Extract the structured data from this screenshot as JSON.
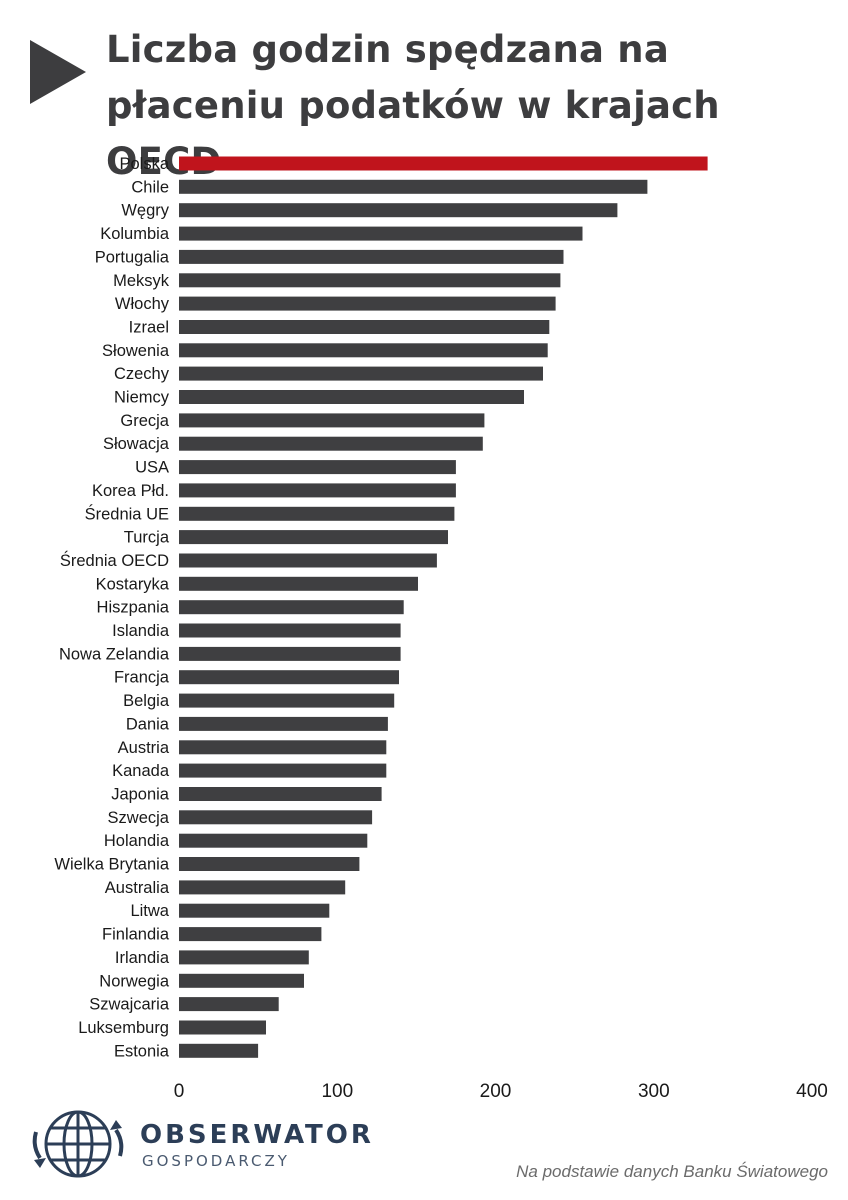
{
  "title": "Liczba godzin spędzana na płaceniu podatków w krajach OECD",
  "source": "Na podstawie danych Banku Światowego",
  "logo": {
    "name": "OBSERWATOR",
    "sub": "GOSPODARCZY"
  },
  "colors": {
    "highlight": "#c0141c",
    "bar": "#3f3f41",
    "text": "#1a1a1a",
    "title": "#3d3d3f"
  },
  "chart_data": {
    "type": "bar",
    "orientation": "horizontal",
    "title": "Liczba godzin spędzana na płaceniu podatków w krajach OECD",
    "xlabel": "",
    "ylabel": "",
    "xlim": [
      0,
      400
    ],
    "xticks": [
      0,
      100,
      200,
      300,
      400
    ],
    "grid": false,
    "highlighted": "Polska",
    "categories": [
      "Polska",
      "Chile",
      "Węgry",
      "Kolumbia",
      "Portugalia",
      "Meksyk",
      "Włochy",
      "Izrael",
      "Słowenia",
      "Czechy",
      "Niemcy",
      "Grecja",
      "Słowacja",
      "USA",
      "Korea Płd.",
      "Średnia UE",
      "Turcja",
      "Średnia OECD",
      "Kostaryka",
      "Hiszpania",
      "Islandia",
      "Nowa Zelandia",
      "Francja",
      "Belgia",
      "Dania",
      "Austria",
      "Kanada",
      "Japonia",
      "Szwecja",
      "Holandia",
      "Wielka Brytania",
      "Australia",
      "Litwa",
      "Finlandia",
      "Irlandia",
      "Norwegia",
      "Szwajcaria",
      "Luksemburg",
      "Estonia"
    ],
    "values": [
      334,
      296,
      277,
      255,
      243,
      241,
      238,
      234,
      233,
      230,
      218,
      193,
      192,
      175,
      175,
      174,
      170,
      163,
      151,
      142,
      140,
      140,
      139,
      136,
      132,
      131,
      131,
      128,
      122,
      119,
      114,
      105,
      95,
      90,
      82,
      79,
      63,
      55,
      50
    ]
  }
}
